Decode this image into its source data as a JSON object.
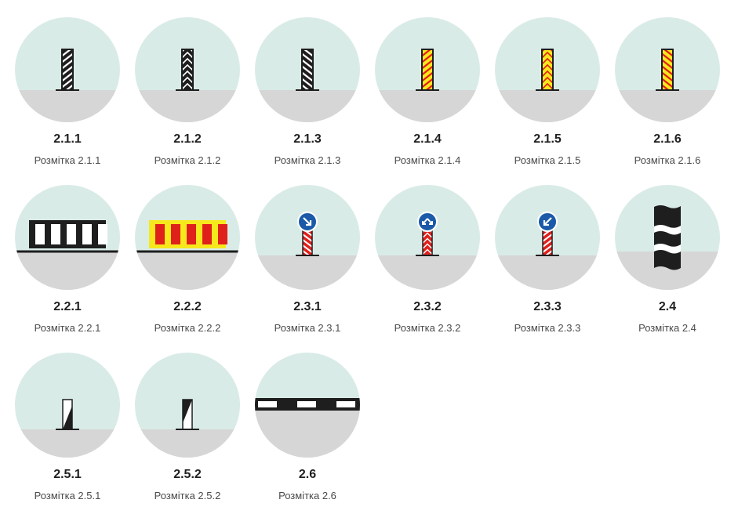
{
  "items": [
    {
      "code": "2.1.1",
      "caption": "Розмітка 2.1.1",
      "icon": "post-white-black-diagonal-stripes-icon"
    },
    {
      "code": "2.1.2",
      "caption": "Розмітка 2.1.2",
      "icon": "post-white-black-chevrons-icon"
    },
    {
      "code": "2.1.3",
      "caption": "Розмітка 2.1.3",
      "icon": "post-white-black-diagonal-stripes-reverse-icon"
    },
    {
      "code": "2.1.4",
      "caption": "Розмітка 2.1.4",
      "icon": "post-red-yellow-diagonal-stripes-icon"
    },
    {
      "code": "2.1.5",
      "caption": "Розмітка 2.1.5",
      "icon": "post-red-yellow-chevrons-icon"
    },
    {
      "code": "2.1.6",
      "caption": "Розмітка 2.1.6",
      "icon": "post-red-yellow-diagonal-stripes-reverse-icon"
    },
    {
      "code": "2.2.1",
      "caption": "Розмітка 2.2.1",
      "icon": "barrier-black-white-stripes-icon"
    },
    {
      "code": "2.2.2",
      "caption": "Розмітка 2.2.2",
      "icon": "barrier-red-yellow-stripes-icon"
    },
    {
      "code": "2.3.1",
      "caption": "Розмітка 2.3.1",
      "icon": "post-with-blue-sign-keep-right-icon"
    },
    {
      "code": "2.3.2",
      "caption": "Розмітка 2.3.2",
      "icon": "post-with-blue-sign-keep-both-sides-icon"
    },
    {
      "code": "2.3.3",
      "caption": "Розмітка 2.3.3",
      "icon": "post-with-blue-sign-keep-left-icon"
    },
    {
      "code": "2.4",
      "caption": "Розмітка 2.4",
      "icon": "column-black-white-bands-icon"
    },
    {
      "code": "2.5.1",
      "caption": "Розмітка 2.5.1",
      "icon": "small-post-diagonal-icon"
    },
    {
      "code": "2.5.2",
      "caption": "Розмітка 2.5.2",
      "icon": "small-post-diagonal-reverse-icon"
    },
    {
      "code": "2.6",
      "caption": "Розмітка 2.6",
      "icon": "curb-black-white-stripes-icon"
    }
  ],
  "colors": {
    "sky": "#d9ebe7",
    "ground": "#d6d6d6",
    "black": "#1e1e1e",
    "red": "#e0201b",
    "yellow": "#f6e81c",
    "blue": "#1a5aa8"
  }
}
